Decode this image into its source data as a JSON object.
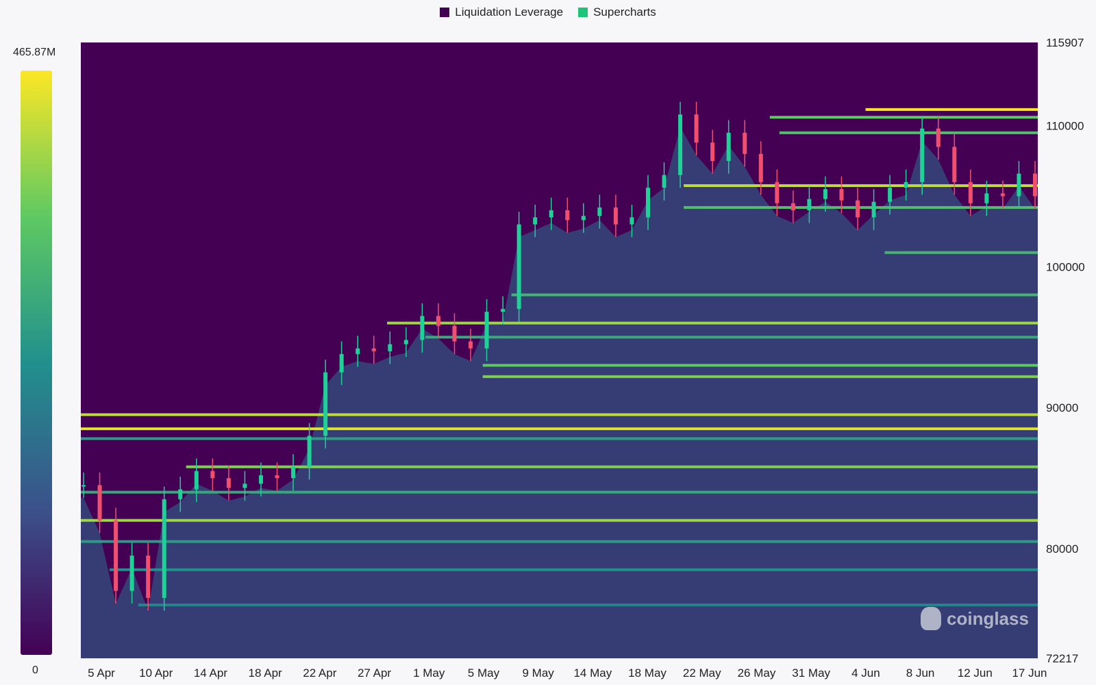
{
  "legend": [
    {
      "label": "Liquidation Leverage",
      "color": "#440154"
    },
    {
      "label": "Supercharts",
      "color": "#20c37a"
    }
  ],
  "colorbar": {
    "max_label": "465.87M",
    "min_label": "0",
    "colormap": "viridis"
  },
  "watermark": "coinglass",
  "chart_data": {
    "type": "heatmap",
    "title": "",
    "xlabel": "",
    "ylabel": "",
    "x_tick_labels": [
      "5 Apr",
      "10 Apr",
      "14 Apr",
      "18 Apr",
      "22 Apr",
      "27 Apr",
      "1 May",
      "5 May",
      "9 May",
      "14 May",
      "18 May",
      "22 May",
      "26 May",
      "31 May",
      "4 Jun",
      "8 Jun",
      "12 Jun",
      "17 Jun"
    ],
    "y_tick_labels": [
      "115907",
      "110000",
      "100000",
      "90000",
      "80000",
      "72217"
    ],
    "ylim": [
      72217,
      115907
    ],
    "grid": false,
    "legend_position": "top-center",
    "candles": [
      {
        "x": 0,
        "c": 84500
      },
      {
        "x": 1,
        "c": 82000
      },
      {
        "x": 2,
        "c": 77000
      },
      {
        "x": 3,
        "c": 79500
      },
      {
        "x": 4,
        "c": 76500
      },
      {
        "x": 5,
        "c": 83500
      },
      {
        "x": 6,
        "c": 84200
      },
      {
        "x": 7,
        "c": 85500
      },
      {
        "x": 8,
        "c": 85000
      },
      {
        "x": 9,
        "c": 84300
      },
      {
        "x": 10,
        "c": 84600
      },
      {
        "x": 11,
        "c": 85200
      },
      {
        "x": 12,
        "c": 85000
      },
      {
        "x": 13,
        "c": 85800
      },
      {
        "x": 14,
        "c": 88000
      },
      {
        "x": 15,
        "c": 92500
      },
      {
        "x": 16,
        "c": 93800
      },
      {
        "x": 17,
        "c": 94200
      },
      {
        "x": 18,
        "c": 94000
      },
      {
        "x": 19,
        "c": 94500
      },
      {
        "x": 20,
        "c": 94800
      },
      {
        "x": 21,
        "c": 96500
      },
      {
        "x": 22,
        "c": 95800
      },
      {
        "x": 23,
        "c": 94700
      },
      {
        "x": 24,
        "c": 94200
      },
      {
        "x": 25,
        "c": 96800
      },
      {
        "x": 26,
        "c": 97000
      },
      {
        "x": 27,
        "c": 103000
      },
      {
        "x": 28,
        "c": 103500
      },
      {
        "x": 29,
        "c": 104000
      },
      {
        "x": 30,
        "c": 103300
      },
      {
        "x": 31,
        "c": 103600
      },
      {
        "x": 32,
        "c": 104200
      },
      {
        "x": 33,
        "c": 103000
      },
      {
        "x": 34,
        "c": 103500
      },
      {
        "x": 35,
        "c": 105600
      },
      {
        "x": 36,
        "c": 106500
      },
      {
        "x": 37,
        "c": 110800
      },
      {
        "x": 38,
        "c": 108800
      },
      {
        "x": 39,
        "c": 107500
      },
      {
        "x": 40,
        "c": 109500
      },
      {
        "x": 41,
        "c": 108000
      },
      {
        "x": 42,
        "c": 106000
      },
      {
        "x": 43,
        "c": 104500
      },
      {
        "x": 44,
        "c": 104000
      },
      {
        "x": 45,
        "c": 104800
      },
      {
        "x": 46,
        "c": 105500
      },
      {
        "x": 47,
        "c": 104700
      },
      {
        "x": 48,
        "c": 103500
      },
      {
        "x": 49,
        "c": 104600
      },
      {
        "x": 50,
        "c": 105600
      },
      {
        "x": 51,
        "c": 106000
      },
      {
        "x": 52,
        "c": 109800
      },
      {
        "x": 53,
        "c": 108500
      },
      {
        "x": 54,
        "c": 106000
      },
      {
        "x": 55,
        "c": 104500
      },
      {
        "x": 56,
        "c": 105200
      },
      {
        "x": 57,
        "c": 105000
      },
      {
        "x": 58,
        "c": 106600
      },
      {
        "x": 59,
        "c": 105000
      }
    ],
    "liquidation_bands": [
      {
        "price": 111150,
        "intensity": 1.0,
        "from": 0.82
      },
      {
        "price": 110600,
        "intensity": 0.75,
        "from": 0.72
      },
      {
        "price": 109500,
        "intensity": 0.7,
        "from": 0.73
      },
      {
        "price": 105750,
        "intensity": 0.9,
        "from": 0.63
      },
      {
        "price": 104200,
        "intensity": 0.7,
        "from": 0.63
      },
      {
        "price": 101000,
        "intensity": 0.65,
        "from": 0.84
      },
      {
        "price": 98000,
        "intensity": 0.65,
        "from": 0.45
      },
      {
        "price": 96000,
        "intensity": 0.85,
        "from": 0.32
      },
      {
        "price": 95000,
        "intensity": 0.6,
        "from": 0.36
      },
      {
        "price": 93000,
        "intensity": 0.75,
        "from": 0.42
      },
      {
        "price": 92200,
        "intensity": 0.8,
        "from": 0.42
      },
      {
        "price": 89500,
        "intensity": 0.9,
        "from": 0.0
      },
      {
        "price": 88500,
        "intensity": 0.95,
        "from": 0.0
      },
      {
        "price": 87800,
        "intensity": 0.55,
        "from": 0.0
      },
      {
        "price": 85800,
        "intensity": 0.8,
        "from": 0.11
      },
      {
        "price": 84000,
        "intensity": 0.6,
        "from": 0.0
      },
      {
        "price": 82000,
        "intensity": 0.85,
        "from": 0.0
      },
      {
        "price": 80500,
        "intensity": 0.55,
        "from": 0.0
      },
      {
        "price": 78500,
        "intensity": 0.5,
        "from": 0.03
      },
      {
        "price": 76000,
        "intensity": 0.45,
        "from": 0.06
      }
    ]
  }
}
